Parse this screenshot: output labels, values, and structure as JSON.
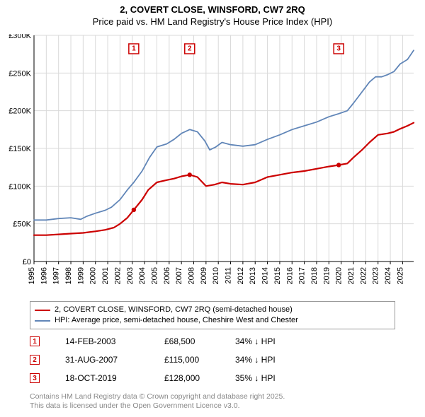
{
  "title_line1": "2, COVERT CLOSE, WINSFORD, CW7 2RQ",
  "title_line2": "Price paid vs. HM Land Registry's House Price Index (HPI)",
  "chart": {
    "type": "line",
    "background_color": "#ffffff",
    "grid_color": "#d9d9d9",
    "axis_color": "#000000",
    "x_min": 1995,
    "x_max": 2025.9,
    "x_ticks": [
      1995,
      1996,
      1997,
      1998,
      1999,
      2000,
      2001,
      2002,
      2003,
      2004,
      2005,
      2006,
      2007,
      2008,
      2009,
      2010,
      2011,
      2012,
      2013,
      2014,
      2015,
      2016,
      2017,
      2018,
      2019,
      2020,
      2021,
      2022,
      2023,
      2024,
      2025
    ],
    "y_min": 0,
    "y_max": 300000,
    "y_ticks": [
      0,
      50000,
      100000,
      150000,
      200000,
      250000,
      300000
    ],
    "y_tick_labels": [
      "£0",
      "£50K",
      "£100K",
      "£150K",
      "£200K",
      "£250K",
      "£300K"
    ],
    "series": [
      {
        "name": "price_paid",
        "label": "2, COVERT CLOSE, WINSFORD, CW7 2RQ (semi-detached house)",
        "color": "#cc0000",
        "line_width": 2.2,
        "data": [
          [
            1995,
            35000
          ],
          [
            1996,
            35000
          ],
          [
            1997,
            36000
          ],
          [
            1998,
            37000
          ],
          [
            1999,
            38000
          ],
          [
            2000,
            40000
          ],
          [
            2000.8,
            42000
          ],
          [
            2001.5,
            45000
          ],
          [
            2002,
            50000
          ],
          [
            2002.6,
            58000
          ],
          [
            2003.12,
            68500
          ],
          [
            2003.8,
            82000
          ],
          [
            2004.3,
            95000
          ],
          [
            2005,
            105000
          ],
          [
            2005.8,
            108000
          ],
          [
            2006.4,
            110000
          ],
          [
            2007,
            113000
          ],
          [
            2007.67,
            115000
          ],
          [
            2008.3,
            112000
          ],
          [
            2009,
            100000
          ],
          [
            2009.7,
            102000
          ],
          [
            2010.3,
            105000
          ],
          [
            2011,
            103000
          ],
          [
            2012,
            102000
          ],
          [
            2013,
            105000
          ],
          [
            2014,
            112000
          ],
          [
            2015,
            115000
          ],
          [
            2016,
            118000
          ],
          [
            2017,
            120000
          ],
          [
            2018,
            123000
          ],
          [
            2019,
            126000
          ],
          [
            2019.8,
            128000
          ],
          [
            2020.5,
            130000
          ],
          [
            2021,
            138000
          ],
          [
            2021.7,
            148000
          ],
          [
            2022.3,
            158000
          ],
          [
            2023,
            168000
          ],
          [
            2023.8,
            170000
          ],
          [
            2024.3,
            172000
          ],
          [
            2024.8,
            176000
          ],
          [
            2025.4,
            180000
          ],
          [
            2025.9,
            184000
          ]
        ]
      },
      {
        "name": "hpi",
        "label": "HPI: Average price, semi-detached house, Cheshire West and Chester",
        "color": "#6186b8",
        "line_width": 1.8,
        "data": [
          [
            1995,
            55000
          ],
          [
            1996,
            55000
          ],
          [
            1997,
            57000
          ],
          [
            1998,
            58000
          ],
          [
            1998.8,
            56000
          ],
          [
            1999.3,
            60000
          ],
          [
            2000,
            64000
          ],
          [
            2000.8,
            68000
          ],
          [
            2001.3,
            72000
          ],
          [
            2002,
            82000
          ],
          [
            2002.6,
            95000
          ],
          [
            2003.12,
            105000
          ],
          [
            2003.8,
            120000
          ],
          [
            2004.4,
            138000
          ],
          [
            2005,
            152000
          ],
          [
            2005.8,
            156000
          ],
          [
            2006.4,
            162000
          ],
          [
            2007,
            170000
          ],
          [
            2007.67,
            175000
          ],
          [
            2008.3,
            172000
          ],
          [
            2008.9,
            160000
          ],
          [
            2009.3,
            148000
          ],
          [
            2009.8,
            152000
          ],
          [
            2010.3,
            158000
          ],
          [
            2011,
            155000
          ],
          [
            2012,
            153000
          ],
          [
            2013,
            155000
          ],
          [
            2014,
            162000
          ],
          [
            2015,
            168000
          ],
          [
            2016,
            175000
          ],
          [
            2017,
            180000
          ],
          [
            2018,
            185000
          ],
          [
            2019,
            192000
          ],
          [
            2019.8,
            196000
          ],
          [
            2020.5,
            200000
          ],
          [
            2021,
            210000
          ],
          [
            2021.7,
            225000
          ],
          [
            2022.3,
            238000
          ],
          [
            2022.8,
            245000
          ],
          [
            2023.3,
            245000
          ],
          [
            2023.8,
            248000
          ],
          [
            2024.3,
            252000
          ],
          [
            2024.8,
            262000
          ],
          [
            2025.4,
            268000
          ],
          [
            2025.9,
            280000
          ]
        ]
      }
    ],
    "sale_markers": [
      {
        "n": "1",
        "x": 2003.12,
        "y": 68500
      },
      {
        "n": "2",
        "x": 2007.67,
        "y": 115000
      },
      {
        "n": "3",
        "x": 2019.8,
        "y": 128000
      }
    ],
    "sale_marker_box_color": "#cc0000",
    "sale_marker_label_top_offset": 12
  },
  "legend": {
    "items": [
      {
        "color": "#cc0000",
        "width": 2.5,
        "label": "2, COVERT CLOSE, WINSFORD, CW7 2RQ (semi-detached house)"
      },
      {
        "color": "#6186b8",
        "width": 2,
        "label": "HPI: Average price, semi-detached house, Cheshire West and Chester"
      }
    ]
  },
  "sales_table": [
    {
      "n": "1",
      "date": "14-FEB-2003",
      "price": "£68,500",
      "diff": "34% ↓ HPI"
    },
    {
      "n": "2",
      "date": "31-AUG-2007",
      "price": "£115,000",
      "diff": "34% ↓ HPI"
    },
    {
      "n": "3",
      "date": "18-OCT-2019",
      "price": "£128,000",
      "diff": "35% ↓ HPI"
    }
  ],
  "footer_line1": "Contains HM Land Registry data © Crown copyright and database right 2025.",
  "footer_line2": "This data is licensed under the Open Government Licence v3.0."
}
